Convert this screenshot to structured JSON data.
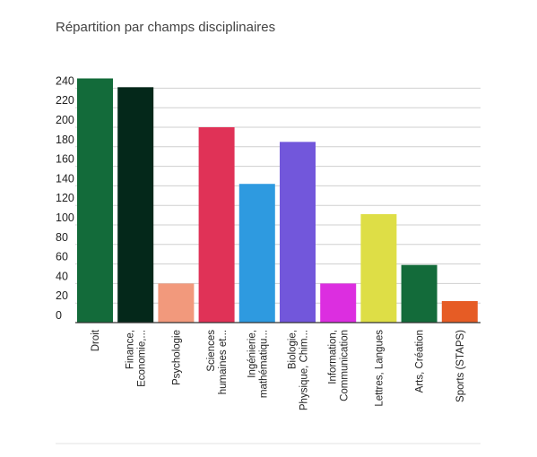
{
  "chart_data": {
    "type": "bar",
    "title": "Répartition par champs disciplinaires",
    "xlabel": "",
    "ylabel": "",
    "ylim": [
      0,
      250
    ],
    "yticks": [
      0,
      20,
      40,
      60,
      80,
      100,
      120,
      140,
      160,
      180,
      200,
      220,
      240
    ],
    "grid": true,
    "legend": "none",
    "categories": [
      [
        "Droit"
      ],
      [
        "Finance,",
        "Economie,..."
      ],
      [
        "Psychologie"
      ],
      [
        "Sciences",
        "humaines et..."
      ],
      [
        "Ingénierie,",
        "mathématiqu..."
      ],
      [
        "Biologie,",
        "Physique, Chim..."
      ],
      [
        "Information,",
        "Communication"
      ],
      [
        "Lettres, Langues"
      ],
      [
        "Arts, Création"
      ],
      [
        "Sports (STAPS)"
      ]
    ],
    "values": [
      250,
      241,
      40,
      200,
      142,
      185,
      40,
      111,
      59,
      22
    ],
    "colors": [
      "#136b3a",
      "#04281a",
      "#f2997c",
      "#e03257",
      "#2e9ae0",
      "#7257db",
      "#dc2ee0",
      "#dede46",
      "#136b3a",
      "#e65c25"
    ]
  }
}
